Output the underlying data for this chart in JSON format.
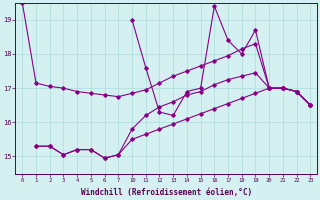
{
  "xlabel": "Windchill (Refroidissement éolien,°C)",
  "background_color": "#d4f0f0",
  "grid_color": "#aadddd",
  "line_color": "#880088",
  "tick_labels": [
    "0",
    "1",
    "2",
    "3",
    "4",
    "5",
    "6",
    "7",
    "10",
    "11",
    "12",
    "13",
    "14",
    "15",
    "16",
    "17",
    "18",
    "19",
    "20",
    "21",
    "22",
    "23"
  ],
  "ylim": [
    14.5,
    19.5
  ],
  "y_ticks": [
    15,
    16,
    17,
    18,
    19
  ],
  "series": [
    {
      "pos": [
        0,
        1,
        2,
        3,
        4,
        5,
        6,
        7,
        8,
        9,
        10,
        11,
        12,
        13,
        14,
        15,
        16,
        17,
        18,
        19,
        20,
        21
      ],
      "y": [
        19.5,
        17.15,
        17.05,
        17.0,
        16.9,
        16.85,
        16.8,
        16.75,
        16.85,
        16.95,
        17.15,
        17.35,
        17.5,
        17.65,
        17.8,
        17.95,
        18.15,
        18.3,
        17.0,
        17.0,
        16.9,
        16.5
      ]
    },
    {
      "pos": [
        8,
        9,
        10,
        11,
        12,
        13,
        14,
        15,
        16,
        17,
        18,
        19,
        20,
        21
      ],
      "y": [
        19.0,
        17.6,
        16.3,
        16.2,
        16.9,
        17.0,
        19.4,
        18.4,
        18.0,
        18.7,
        17.0,
        17.0,
        16.9,
        16.5
      ]
    },
    {
      "pos": [
        1,
        2,
        3,
        4,
        5,
        6,
        7,
        8,
        9,
        10,
        11,
        12,
        13,
        14,
        15,
        16,
        17,
        18,
        19,
        20,
        21
      ],
      "y": [
        15.3,
        15.3,
        15.05,
        15.2,
        15.2,
        14.95,
        15.05,
        15.5,
        15.65,
        15.8,
        15.95,
        16.1,
        16.25,
        16.4,
        16.55,
        16.7,
        16.85,
        17.0,
        17.0,
        16.9,
        16.5
      ]
    },
    {
      "pos": [
        1,
        2,
        3,
        4,
        5,
        6,
        7,
        8,
        9,
        10,
        11,
        12,
        13,
        14,
        15,
        16,
        17,
        18,
        19,
        20,
        21
      ],
      "y": [
        15.3,
        15.3,
        15.05,
        15.2,
        15.2,
        14.95,
        15.05,
        15.8,
        16.2,
        16.45,
        16.6,
        16.8,
        16.9,
        17.1,
        17.25,
        17.35,
        17.45,
        17.0,
        17.0,
        16.9,
        16.5
      ]
    }
  ]
}
